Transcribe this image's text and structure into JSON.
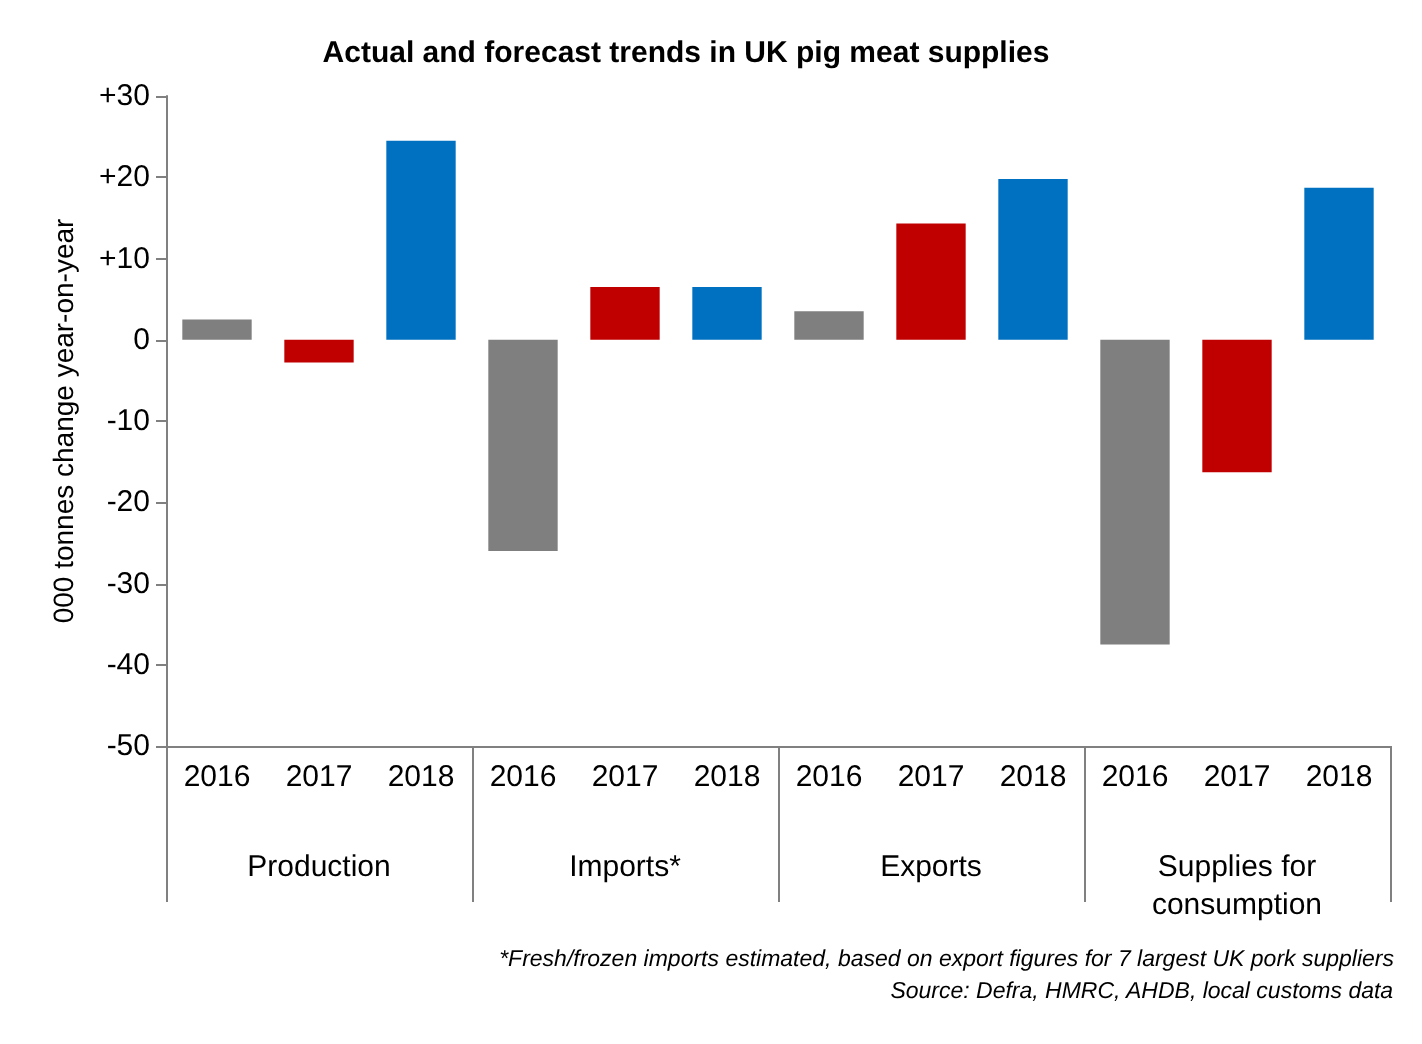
{
  "chart_data": {
    "type": "bar",
    "title": "Actual and forecast trends in UK pig meat supplies",
    "ylabel": "000 tonnes change year-on-year",
    "categories": [
      "2016",
      "2017",
      "2018",
      "2016",
      "2017",
      "2018",
      "2016",
      "2017",
      "2018",
      "2016",
      "2017",
      "2018"
    ],
    "values": [
      2.5,
      -2.8,
      24.5,
      -26,
      6.5,
      6.5,
      3.5,
      14.3,
      19.8,
      -37.5,
      -16.3,
      18.7
    ],
    "colors": [
      "#7f7f7f",
      "#c00000",
      "#0070c0",
      "#7f7f7f",
      "#c00000",
      "#0070c0",
      "#7f7f7f",
      "#c00000",
      "#0070c0",
      "#7f7f7f",
      "#c00000",
      "#0070c0"
    ],
    "ylim": [
      -50,
      30
    ],
    "yticks": [
      -50,
      -40,
      -30,
      -20,
      -10,
      0,
      {
        "value": 10,
        "label": "+10"
      },
      {
        "value": 20,
        "label": "+20"
      },
      {
        "value": 30,
        "label": "+30"
      }
    ],
    "annotations": [
      "Production",
      "Imports*",
      "Exports",
      "Supplies for\nconsumption",
      "*Fresh/frozen imports estimated, based on export figures for 7 largest UK pork suppliers",
      "Source: Defra, HMRC, AHDB, local customs data"
    ],
    "grid": false
  }
}
